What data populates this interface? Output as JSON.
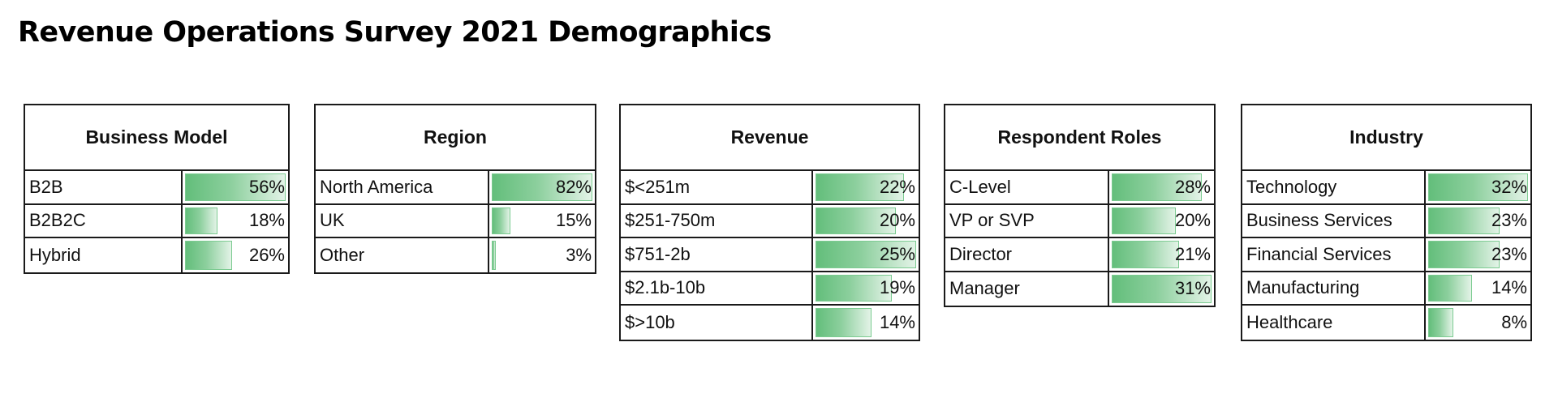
{
  "title": "Revenue Operations Survey 2021 Demographics",
  "colors": {
    "bar_start": "#63be7b",
    "bar_end": "#e3f3e7",
    "border": "#1a1a1a"
  },
  "tables": [
    {
      "header": "Business Model",
      "rows": [
        {
          "label": "B2B",
          "value": "56%",
          "num": 56
        },
        {
          "label": "B2B2C",
          "value": "18%",
          "num": 18
        },
        {
          "label": "Hybrid",
          "value": "26%",
          "num": 26
        }
      ]
    },
    {
      "header": "Region",
      "rows": [
        {
          "label": "North America",
          "value": "82%",
          "num": 82
        },
        {
          "label": "UK",
          "value": "15%",
          "num": 15
        },
        {
          "label": "Other",
          "value": "3%",
          "num": 3
        }
      ]
    },
    {
      "header": "Revenue",
      "rows": [
        {
          "label": "$<251m",
          "value": "22%",
          "num": 22
        },
        {
          "label": "$251-750m",
          "value": "20%",
          "num": 20
        },
        {
          "label": "$751-2b",
          "value": "25%",
          "num": 25
        },
        {
          "label": "$2.1b-10b",
          "value": "19%",
          "num": 19
        },
        {
          "label": "$>10b",
          "value": "14%",
          "num": 14
        }
      ]
    },
    {
      "header": "Respondent Roles",
      "rows": [
        {
          "label": "C-Level",
          "value": "28%",
          "num": 28
        },
        {
          "label": "VP or SVP",
          "value": "20%",
          "num": 20
        },
        {
          "label": "Director",
          "value": "21%",
          "num": 21
        },
        {
          "label": "Manager",
          "value": "31%",
          "num": 31
        }
      ]
    },
    {
      "header": "Industry",
      "rows": [
        {
          "label": "Technology",
          "value": "32%",
          "num": 32
        },
        {
          "label": "Business Services",
          "value": "23%",
          "num": 23
        },
        {
          "label": "Financial Services",
          "value": "23%",
          "num": 23
        },
        {
          "label": "Manufacturing",
          "value": "14%",
          "num": 14
        },
        {
          "label": "Healthcare",
          "value": "8%",
          "num": 8
        }
      ]
    }
  ],
  "chart_data": [
    {
      "type": "table",
      "title": "Business Model",
      "categories": [
        "B2B",
        "B2B2C",
        "Hybrid"
      ],
      "values": [
        56,
        18,
        26
      ],
      "unit": "%"
    },
    {
      "type": "table",
      "title": "Region",
      "categories": [
        "North America",
        "UK",
        "Other"
      ],
      "values": [
        82,
        15,
        3
      ],
      "unit": "%"
    },
    {
      "type": "table",
      "title": "Revenue",
      "categories": [
        "$<251m",
        "$251-750m",
        "$751-2b",
        "$2.1b-10b",
        "$>10b"
      ],
      "values": [
        22,
        20,
        25,
        19,
        14
      ],
      "unit": "%"
    },
    {
      "type": "table",
      "title": "Respondent Roles",
      "categories": [
        "C-Level",
        "VP or SVP",
        "Director",
        "Manager"
      ],
      "values": [
        28,
        20,
        21,
        31
      ],
      "unit": "%"
    },
    {
      "type": "table",
      "title": "Industry",
      "categories": [
        "Technology",
        "Business Services",
        "Financial Services",
        "Manufacturing",
        "Healthcare"
      ],
      "values": [
        32,
        23,
        23,
        14,
        8
      ],
      "unit": "%"
    }
  ]
}
